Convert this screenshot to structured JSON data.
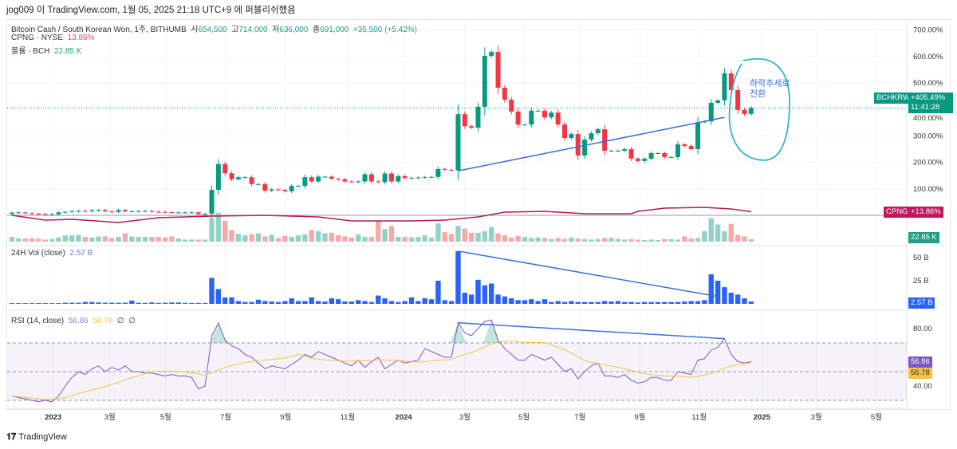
{
  "published": "jog009 이 TradingView.com, 1월 05, 2025 21:18 UTC+9 에 퍼블리쉬했음",
  "legend": {
    "symbol": "Bitcoin Cash / South Korean Won, 1주, BITHUMB",
    "o_label": "시",
    "o": "654,500",
    "h_label": "고",
    "h": "714,000",
    "l_label": "저",
    "l": "636,000",
    "c_label": "종",
    "c": "691,000",
    "change": "+35,500 (+5.42%)",
    "cpng_label": "CPNG · NYSE",
    "cpng_value": "13.86%",
    "vol_label": "볼륨 · BCH",
    "vol_value": "22.85 K",
    "vol24_label": "24H Vol (close)",
    "vol24_value": "2.57 B",
    "rsi_label": "RSI (14, close)",
    "rsi_value": "56.86",
    "rsi_ma_value": "56.78",
    "rsi_extra1": "∅",
    "rsi_extra2": "∅"
  },
  "tags": {
    "bch_name": "BCHKRW",
    "bch_pct": "+405.49%",
    "bch_countdown": "11:41:28",
    "cpng_name": "CPNG",
    "cpng_pct": "+13.86%",
    "vol": "22.85 K",
    "vol24": "2.57 B",
    "rsi": "56.86",
    "rsi_ma": "56.78"
  },
  "annotation_text": [
    "하락추세로",
    "전환"
  ],
  "footer_logo": "TradingView",
  "colors": {
    "up": "#089981",
    "down": "#f23645",
    "vol_up": "#92d2c6",
    "vol_down": "#f7a9a7",
    "cpng": "#b2195e",
    "vol24": "#2962ff",
    "rsi": "#7e57c2",
    "rsi_ma": "#f5c342",
    "drawing": "#3d6fdc",
    "circle": "#2bb7c9"
  },
  "chart_data": {
    "type": "candlestick",
    "title": "Bitcoin Cash / South Korean Won, 1주, BITHUMB",
    "interval": "1 week",
    "price_unit": "% change",
    "y_ticks": [
      "100.00%",
      "200.00%",
      "300.00%",
      "400.00%",
      "500.00%",
      "600.00%",
      "700.00%"
    ],
    "y_tick_values": [
      100,
      200,
      300,
      400,
      500,
      600,
      700
    ],
    "x_labels": [
      {
        "label": "2023",
        "week": 6.2
      },
      {
        "label": "3월",
        "week": 14.7
      },
      {
        "label": "5월",
        "week": 23.1
      },
      {
        "label": "7월",
        "week": 32.1
      },
      {
        "label": "9월",
        "week": 41.1
      },
      {
        "label": "11월",
        "week": 50.4
      },
      {
        "label": "2024",
        "week": 58.8
      },
      {
        "label": "3월",
        "week": 68
      },
      {
        "label": "5월",
        "week": 76.9
      },
      {
        "label": "7월",
        "week": 85.3
      },
      {
        "label": "9월",
        "week": 94.3
      },
      {
        "label": "11월",
        "week": 103.2
      },
      {
        "label": "2025",
        "week": 112.6
      },
      {
        "label": "3월",
        "week": 120.8
      },
      {
        "label": "5월",
        "week": 129.8
      }
    ],
    "first_open": 5,
    "close": [
      10,
      11,
      8,
      6,
      5,
      3,
      4,
      11,
      13,
      16,
      17,
      15,
      19,
      20,
      15,
      13,
      20,
      15,
      15,
      16,
      17,
      14,
      13,
      12,
      11,
      11,
      11,
      11,
      5,
      6,
      96,
      194,
      159,
      136,
      144,
      144,
      118,
      118,
      93,
      98,
      96,
      91,
      111,
      111,
      144,
      128,
      146,
      146,
      138,
      136,
      128,
      126,
      128,
      155,
      128,
      125,
      158,
      128,
      148,
      141,
      141,
      143,
      145,
      145,
      175,
      172,
      170,
      382,
      337,
      331,
      410,
      602,
      617,
      482,
      437,
      392,
      343,
      343,
      395,
      395,
      370,
      388,
      343,
      292,
      307,
      226,
      286,
      310,
      325,
      244,
      244,
      244,
      250,
      214,
      205,
      214,
      235,
      235,
      220,
      220,
      268,
      262,
      250,
      352,
      355,
      425,
      434,
      536,
      473,
      398,
      383,
      405.49
    ],
    "volume_k": [
      45,
      30,
      30,
      35,
      30,
      20,
      25,
      40,
      60,
      60,
      65,
      45,
      40,
      50,
      50,
      35,
      45,
      80,
      50,
      45,
      45,
      45,
      45,
      40,
      50,
      30,
      20,
      20,
      20,
      20,
      225,
      275,
      200,
      110,
      75,
      60,
      70,
      80,
      50,
      65,
      35,
      55,
      45,
      60,
      70,
      110,
      100,
      80,
      85,
      60,
      50,
      40,
      70,
      45,
      45,
      200,
      120,
      150,
      45,
      45,
      40,
      45,
      60,
      40,
      175,
      90,
      75,
      150,
      125,
      85,
      85,
      100,
      140,
      80,
      60,
      40,
      55,
      45,
      35,
      40,
      35,
      25,
      35,
      25,
      40,
      30,
      25,
      20,
      25,
      35,
      35,
      25,
      20,
      25,
      20,
      15,
      20,
      15,
      25,
      25,
      20,
      50,
      30,
      35,
      100,
      225,
      165,
      100,
      170,
      65,
      50,
      22.85
    ],
    "vol24_b": [
      0.8,
      0.8,
      0.8,
      0.8,
      0.8,
      0.8,
      0.8,
      0.8,
      1.2,
      1.2,
      1.2,
      2,
      2,
      1.5,
      1.2,
      1.2,
      1.2,
      1.2,
      3.5,
      1.2,
      1,
      1.5,
      1,
      1.2,
      1.5,
      1.5,
      1,
      1,
      1,
      1,
      28,
      16,
      7,
      7,
      3,
      2,
      2,
      4.5,
      3,
      2.5,
      2,
      3,
      6,
      3,
      3,
      7,
      3,
      2.5,
      6,
      5,
      2.5,
      2.5,
      4,
      3,
      2,
      9,
      6,
      3,
      2,
      3,
      7,
      3,
      6,
      5,
      25,
      4,
      3,
      57,
      12,
      10,
      26,
      20,
      22,
      10,
      8,
      6,
      4,
      4,
      5,
      3,
      5,
      2,
      3,
      2,
      3,
      2,
      2,
      2,
      2,
      3,
      2.5,
      3,
      2,
      2,
      1.5,
      2,
      2,
      2,
      2,
      2,
      2,
      2.5,
      3,
      3,
      4,
      32,
      25,
      18,
      12,
      10,
      6,
      2.57
    ],
    "vol24_ticks": [
      "25 B",
      "50 B"
    ],
    "vol24_tick_values": [
      25,
      50
    ],
    "rsi": [
      33,
      32,
      31,
      30,
      29,
      30,
      29,
      33,
      40,
      46,
      50,
      48,
      52,
      54,
      50,
      53,
      51,
      54,
      50,
      50,
      49,
      49,
      48,
      47,
      48,
      47,
      47,
      46,
      38,
      40,
      75,
      84,
      72,
      68,
      66,
      62,
      60,
      56,
      52,
      54,
      53,
      52,
      55,
      58,
      62,
      60,
      64,
      62,
      60,
      58,
      56,
      54,
      58,
      53,
      57,
      60,
      52,
      55,
      58,
      56,
      57,
      58,
      66,
      64,
      62,
      60,
      60,
      84,
      77,
      75,
      80,
      85,
      86,
      72,
      66,
      62,
      58,
      58,
      62,
      60,
      58,
      60,
      55,
      50,
      52,
      45,
      50,
      54,
      56,
      47,
      47,
      46,
      48,
      44,
      42,
      43,
      46,
      46,
      44,
      44,
      50,
      49,
      48,
      58,
      59,
      65,
      67,
      73,
      62,
      57,
      56,
      56.86
    ],
    "rsi_ma_length": 14,
    "rsi_ticks": [
      "40.00",
      "80.00"
    ],
    "rsi_tick_values": [
      40,
      80
    ],
    "rsi_band": [
      30,
      70
    ],
    "rsi_mid": 50,
    "cpng_points": [
      [
        0,
        0
      ],
      [
        5,
        -18
      ],
      [
        9,
        -15
      ],
      [
        16,
        -27
      ],
      [
        22,
        -9
      ],
      [
        30,
        -3
      ],
      [
        38,
        0
      ],
      [
        46,
        -6
      ],
      [
        51,
        -21
      ],
      [
        60,
        -21
      ],
      [
        65,
        -18
      ],
      [
        70,
        -6
      ],
      [
        74,
        12
      ],
      [
        80,
        15
      ],
      [
        86,
        6
      ],
      [
        93,
        6
      ],
      [
        94,
        15
      ],
      [
        98,
        27
      ],
      [
        104,
        30
      ],
      [
        108,
        24
      ],
      [
        111,
        13.86
      ]
    ],
    "trendlines": {
      "price": [
        [
          67,
          168
        ],
        [
          107,
          370
        ]
      ],
      "vol24": [
        [
          67,
          57
        ],
        [
          106,
          8
        ]
      ],
      "rsi": [
        [
          67,
          84
        ],
        [
          107,
          73
        ]
      ]
    }
  }
}
